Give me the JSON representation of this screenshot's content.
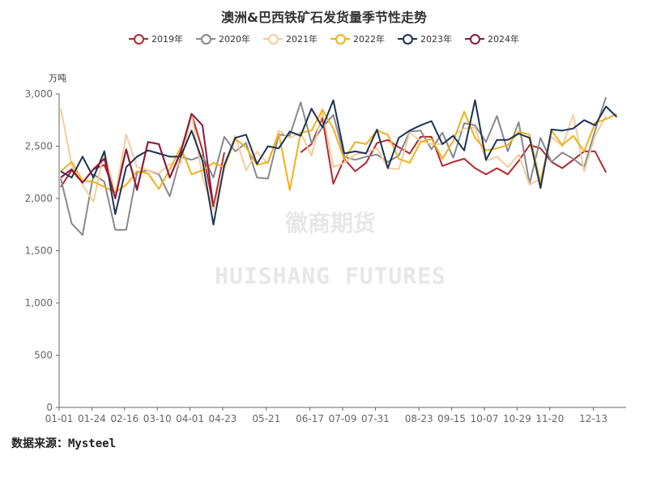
{
  "title": "澳洲&巴西铁矿石发货量季节性走势",
  "unit_label": "万吨",
  "source": "数据来源：Mysteel",
  "watermark": {
    "cn": "徽商期货",
    "en": "HUISHANG FUTURES"
  },
  "chart_data": {
    "type": "line",
    "title": "澳洲&巴西铁矿石发货量季节性走势",
    "ylabel": "万吨",
    "ylim": [
      0,
      3000
    ],
    "yticks": [
      0,
      500,
      1000,
      1500,
      2000,
      2500,
      3000
    ],
    "ytick_labels": [
      "0",
      "500",
      "1,000",
      "1,500",
      "2,000",
      "2,500",
      "3,000"
    ],
    "x_ticks": [
      "01-01",
      "01-24",
      "02-16",
      "03-10",
      "04-01",
      "04-23",
      "05-21",
      "06-17",
      "07-09",
      "07-31",
      "08-23",
      "09-15",
      "10-07",
      "10-29",
      "11-20",
      "12-13"
    ],
    "x_tick_weeks": [
      0,
      3,
      6,
      9,
      12,
      15,
      19,
      23,
      26,
      29,
      33,
      36,
      39,
      42,
      45,
      49
    ],
    "legend_position": "top-center",
    "grid": false,
    "series": [
      {
        "name": "2019年",
        "color": "#b5282d",
        "values": [
          2110,
          2270,
          2150,
          2280,
          2320,
          2050,
          2470,
          2090,
          2540,
          2520,
          2200,
          2450,
          2810,
          2460,
          1920,
          2440,
          null,
          null,
          null,
          null,
          null,
          null,
          2440,
          2520,
          2770,
          2140,
          2380,
          2260,
          2340,
          2530,
          2560,
          2490,
          2430,
          2590,
          2590,
          2310,
          2350,
          2380,
          2290,
          2230,
          2290,
          2230,
          2360,
          2510,
          2480,
          2350,
          2290,
          2370,
          2450,
          2450,
          2250
        ]
      },
      {
        "name": "2020年",
        "color": "#888891",
        "values": [
          2190,
          1760,
          1650,
          2230,
          2160,
          1700,
          1700,
          2250,
          2270,
          2230,
          2020,
          2400,
          2370,
          2410,
          2200,
          2590,
          2450,
          2530,
          2200,
          2190,
          2610,
          2600,
          2920,
          2530,
          2680,
          2800,
          2400,
          2370,
          2400,
          2420,
          2350,
          2410,
          2640,
          2650,
          2470,
          2630,
          2390,
          2720,
          2700,
          2540,
          2790,
          2450,
          2730,
          2140,
          2580,
          2350,
          2440,
          2380,
          2300,
          2650,
          2970
        ]
      },
      {
        "name": "2021年",
        "color": "#f5cc9a",
        "values": [
          2860,
          2320,
          2130,
          1970,
          2460,
          2040,
          2610,
          2300,
          2270,
          2240,
          2330,
          2330,
          2810,
          2200,
          1890,
          2280,
          2600,
          2270,
          2450,
          2330,
          2650,
          2580,
          2630,
          2410,
          2830,
          2300,
          2340,
          2420,
          2440,
          2480,
          2290,
          2280,
          2630,
          2550,
          2520,
          2520,
          2600,
          2670,
          2680,
          2360,
          2400,
          2300,
          2420,
          2130,
          2190,
          2590,
          2500,
          2800,
          2260,
          2600,
          2790
        ]
      },
      {
        "name": "2022年",
        "color": "#f0b118",
        "values": [
          2260,
          2350,
          2170,
          2160,
          2110,
          2060,
          2130,
          2260,
          2240,
          2090,
          2280,
          2490,
          2230,
          2270,
          2340,
          2300,
          2570,
          2490,
          2320,
          2350,
          2620,
          2080,
          2630,
          2650,
          2850,
          2670,
          2370,
          2540,
          2520,
          2650,
          2610,
          2380,
          2340,
          2540,
          2570,
          2380,
          2550,
          2830,
          2580,
          2460,
          2480,
          2510,
          2640,
          2610,
          2140,
          2650,
          2510,
          2600,
          2450,
          2720,
          2760,
          2810
        ]
      },
      {
        "name": "2023年",
        "color": "#1d3254",
        "values": [
          2260,
          2200,
          2400,
          2200,
          2450,
          1850,
          2300,
          2400,
          2460,
          2430,
          2400,
          2400,
          2650,
          2360,
          1750,
          2320,
          2580,
          2610,
          2330,
          2500,
          2480,
          2640,
          2600,
          2860,
          2680,
          2940,
          2430,
          2450,
          2430,
          2660,
          2290,
          2580,
          2650,
          2700,
          2740,
          2520,
          2600,
          2460,
          2940,
          2370,
          2560,
          2560,
          2620,
          2580,
          2100,
          2660,
          2650,
          2670,
          2750,
          2700,
          2880,
          2780
        ]
      },
      {
        "name": "2024年",
        "color": "#8b1a3a",
        "values": [
          2200,
          2280,
          2150,
          2280,
          2380,
          2000,
          2470,
          2080,
          2540,
          2520,
          2200,
          2440,
          2810,
          2700,
          1920,
          null,
          null,
          null,
          null,
          null,
          null,
          null,
          null,
          null,
          null,
          null,
          null,
          null,
          null,
          null,
          null,
          null,
          null,
          null,
          null,
          null,
          null,
          null,
          null,
          null,
          null,
          null,
          null,
          null,
          null,
          null,
          null,
          null,
          null,
          null,
          null,
          null
        ]
      }
    ]
  }
}
